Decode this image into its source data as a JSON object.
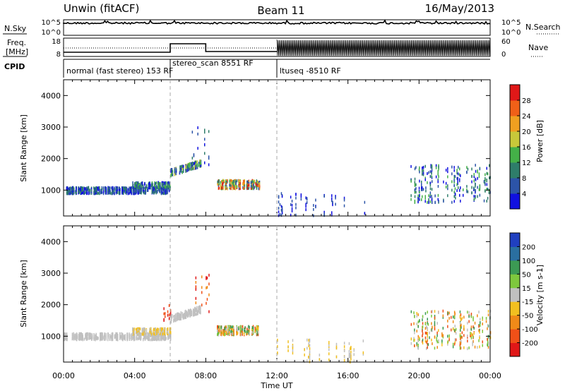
{
  "header": {
    "radar": "Unwin (fitACF)",
    "beam": "Beam 11",
    "date": "16/May/2013"
  },
  "top_panels": {
    "nsky_label": "N.Sky",
    "nsearch_label": "N.Search",
    "freq_label_1": "Freq.",
    "freq_label_2": "[MHz]",
    "nave_label": "Nave",
    "cpid_label": "CPID",
    "nsky_ticks": [
      "10^5",
      "10^0"
    ],
    "nsearch_ticks": [
      "10^5",
      "10^0"
    ],
    "freq_ticks": [
      "18",
      "8"
    ],
    "nave_ticks": [
      "60",
      "0"
    ]
  },
  "cpid_segments": [
    {
      "label": "normal (fast stereo) 153 RF",
      "start": 0,
      "end": 6
    },
    {
      "label": "stereo_scan 8551 RF",
      "start": 6,
      "end": 12
    },
    {
      "label": "ltuseq -8510 RF",
      "start": 12,
      "end": 24
    }
  ],
  "chart_data": [
    {
      "type": "heatmap",
      "name": "Power",
      "ylabel": "Slant Range [km]",
      "xlabel": "Time UT",
      "xlim": [
        0,
        24
      ],
      "ylim": [
        180,
        4500
      ],
      "x_ticks": [
        "00:00",
        "04:00",
        "08:00",
        "12:00",
        "16:00",
        "20:00",
        "00:00"
      ],
      "y_ticks": [
        1000,
        2000,
        3000,
        4000
      ],
      "colorbar": {
        "label": "Power [dB]",
        "ticks": [
          "4",
          "8",
          "12",
          "16",
          "20",
          "24",
          "28"
        ],
        "colors": [
          "#1010e0",
          "#2c54a8",
          "#2e7d6a",
          "#44b048",
          "#c8c83a",
          "#f0a020",
          "#f06018",
          "#e01818"
        ]
      },
      "scatter_regions": [
        {
          "t": [
            0.0,
            6.0
          ],
          "r": [
            820,
            1150
          ],
          "density": "high",
          "color_range": [
            0,
            2
          ]
        },
        {
          "t": [
            3.8,
            6.0
          ],
          "r": [
            1000,
            1300
          ],
          "density": "high",
          "color_range": [
            0,
            3
          ]
        },
        {
          "t": [
            6.0,
            7.7
          ],
          "r": [
            1350,
            1950
          ],
          "density": "high",
          "color_range": [
            0,
            4
          ]
        },
        {
          "t": [
            7.2,
            8.6
          ],
          "r": [
            1700,
            3050
          ],
          "density": "low",
          "color_range": [
            0,
            2
          ]
        },
        {
          "t": [
            8.6,
            11.0
          ],
          "r": [
            950,
            1400
          ],
          "density": "high",
          "color_range": [
            1,
            7
          ]
        },
        {
          "t": [
            12.0,
            17.0
          ],
          "r": [
            180,
            900
          ],
          "density": "low",
          "color_range": [
            0,
            1
          ]
        },
        {
          "t": [
            19.5,
            24.0
          ],
          "r": [
            600,
            1800
          ],
          "density": "medium",
          "color_range": [
            0,
            3
          ]
        }
      ]
    },
    {
      "type": "heatmap",
      "name": "Velocity",
      "ylabel": "Slant Range [km]",
      "xlabel": "Time UT",
      "xlim": [
        0,
        24
      ],
      "ylim": [
        180,
        4500
      ],
      "x_ticks": [
        "00:00",
        "04:00",
        "08:00",
        "12:00",
        "16:00",
        "20:00",
        "00:00"
      ],
      "y_ticks": [
        1000,
        2000,
        3000,
        4000
      ],
      "colorbar": {
        "label": "Velocity [m s-1]",
        "ticks": [
          "200",
          "100",
          "50",
          "15",
          "-15",
          "-50",
          "-100",
          "-200"
        ],
        "colors": [
          "#2040c0",
          "#2a6fa0",
          "#3c9a54",
          "#7ec83e",
          "#c0c0c0",
          "#f2c020",
          "#f08a18",
          "#f05018",
          "#e01818"
        ]
      },
      "scatter_regions": [
        {
          "t": [
            0.0,
            6.0
          ],
          "r": [
            820,
            1150
          ],
          "density": "high",
          "color_range": [
            4,
            4
          ]
        },
        {
          "t": [
            3.8,
            6.0
          ],
          "r": [
            1000,
            1300
          ],
          "density": "high",
          "color_range": [
            4,
            5
          ]
        },
        {
          "t": [
            5.6,
            6.0
          ],
          "r": [
            1500,
            2000
          ],
          "density": "medium",
          "color_range": [
            7,
            8
          ]
        },
        {
          "t": [
            6.0,
            7.7
          ],
          "r": [
            1350,
            1950
          ],
          "density": "high",
          "color_range": [
            4,
            4
          ]
        },
        {
          "t": [
            7.2,
            8.6
          ],
          "r": [
            1700,
            3050
          ],
          "density": "low",
          "color_range": [
            6,
            8
          ]
        },
        {
          "t": [
            8.6,
            11.0
          ],
          "r": [
            950,
            1400
          ],
          "density": "high",
          "color_range": [
            2,
            7
          ]
        },
        {
          "t": [
            12.0,
            17.0
          ],
          "r": [
            180,
            900
          ],
          "density": "low",
          "color_range": [
            4,
            5
          ]
        },
        {
          "t": [
            19.5,
            24.0
          ],
          "r": [
            600,
            1800
          ],
          "density": "medium",
          "color_range": [
            2,
            7
          ]
        }
      ]
    }
  ]
}
